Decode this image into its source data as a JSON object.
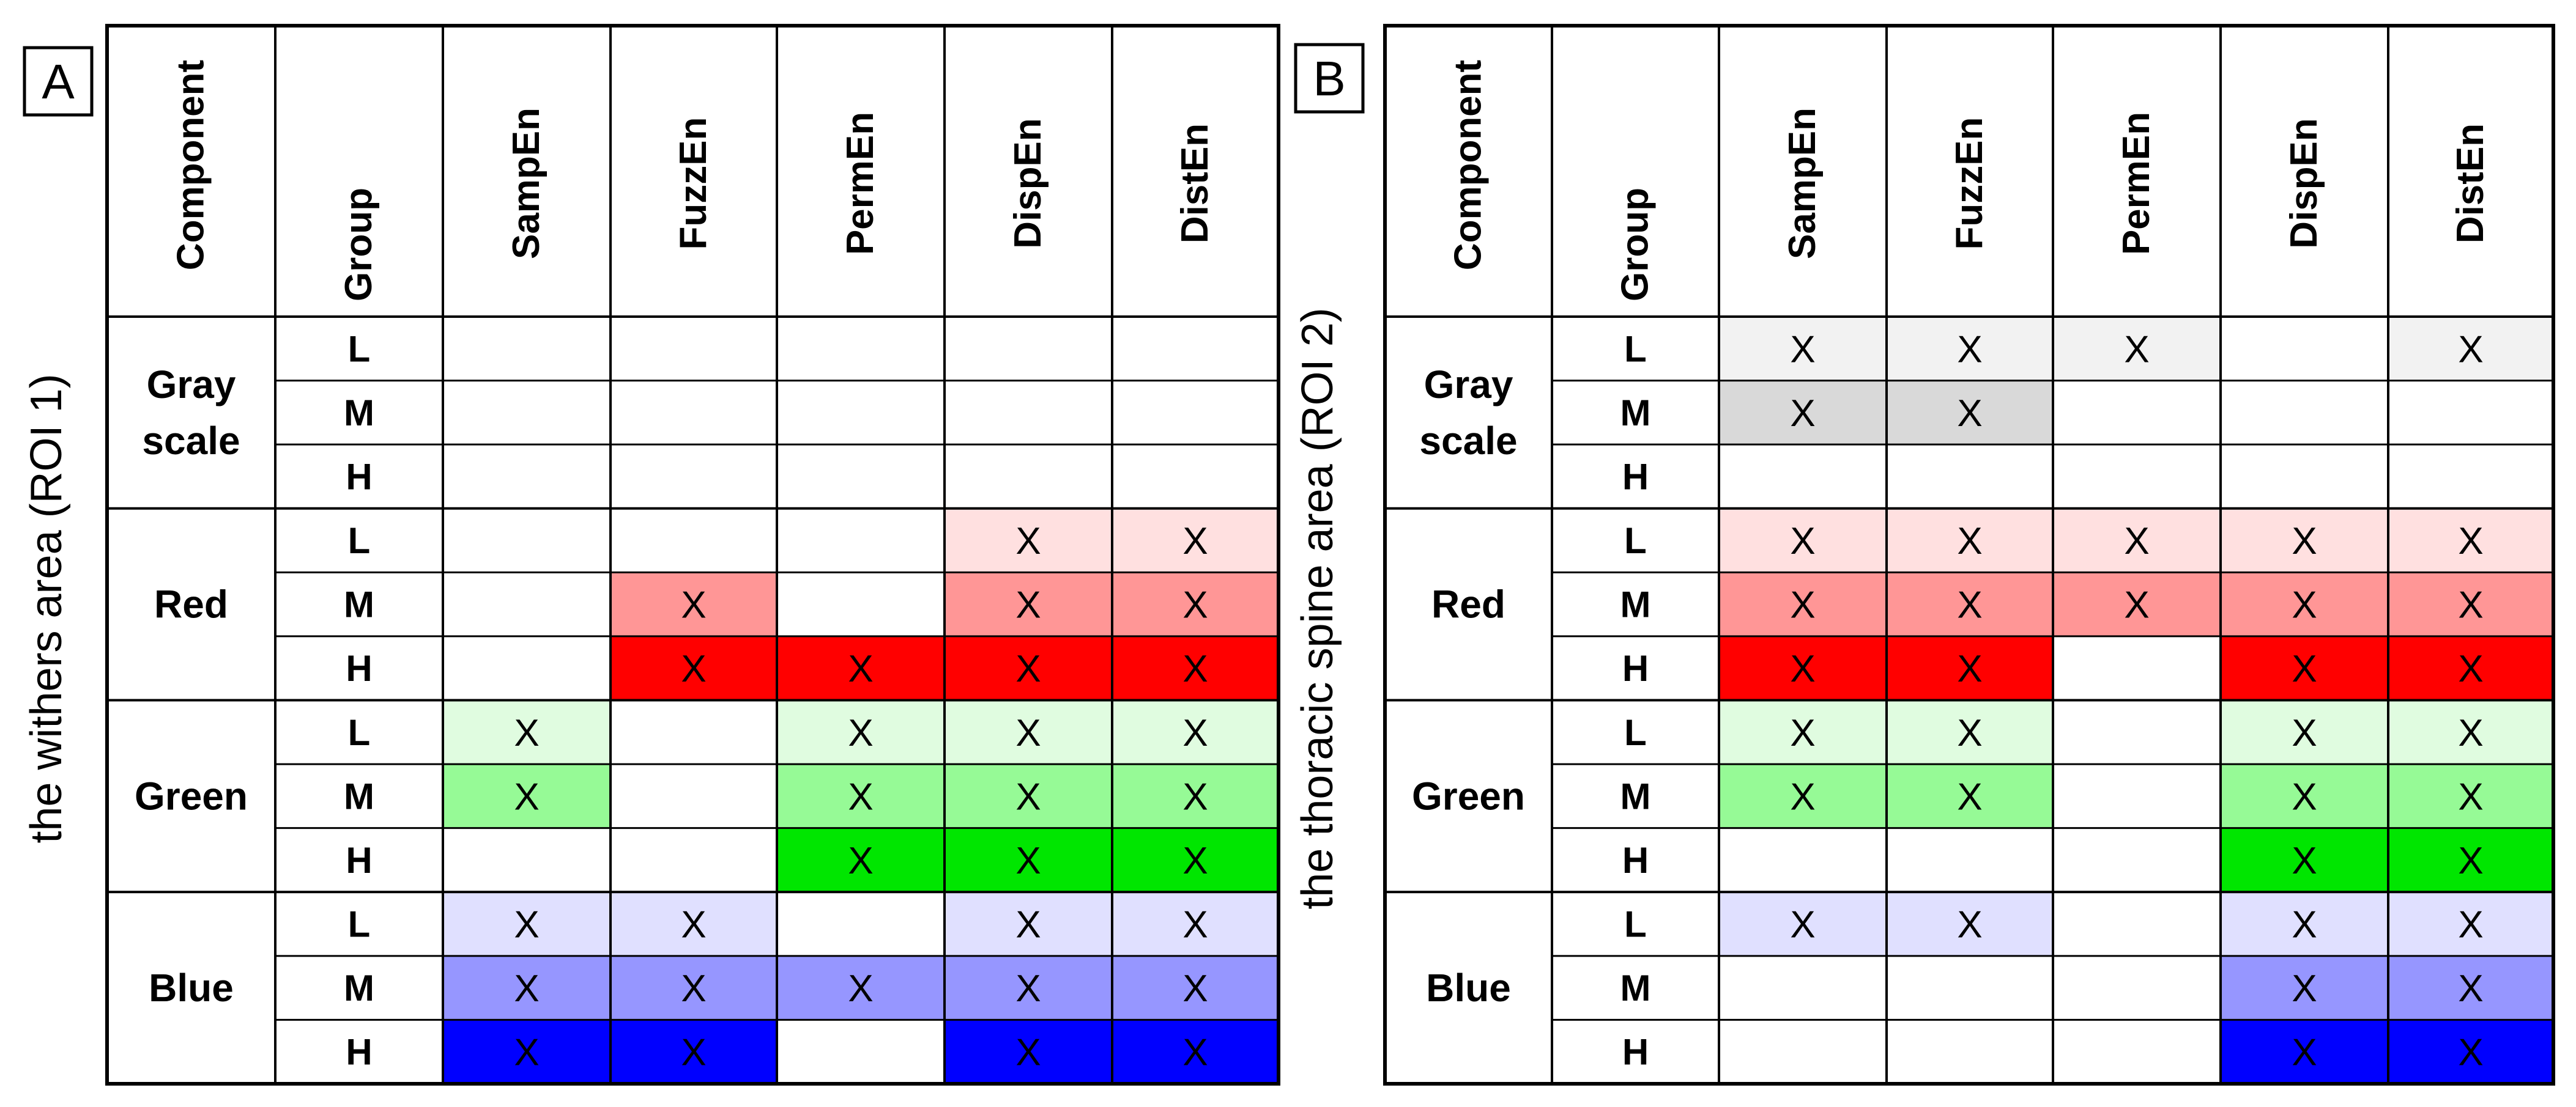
{
  "chart_data": [
    {
      "type": "table",
      "panel_label": "A",
      "side_title": "the withers area (ROI 1)",
      "header": [
        "Component",
        "Group",
        "SampEn",
        "FuzzEn",
        "PermEn",
        "DispEn",
        "DistEn"
      ],
      "components": [
        {
          "name_lines": [
            "Gray",
            "scale"
          ],
          "color_key": "gray",
          "groups": [
            "L",
            "M",
            "H"
          ]
        },
        {
          "name_lines": [
            "Red"
          ],
          "color_key": "red",
          "groups": [
            "L",
            "M",
            "H"
          ]
        },
        {
          "name_lines": [
            "Green"
          ],
          "color_key": "green",
          "groups": [
            "L",
            "M",
            "H"
          ]
        },
        {
          "name_lines": [
            "Blue"
          ],
          "color_key": "blue",
          "groups": [
            "L",
            "M",
            "H"
          ]
        }
      ],
      "matrix": [
        [
          0,
          0,
          0,
          0,
          0
        ],
        [
          0,
          0,
          0,
          0,
          0
        ],
        [
          0,
          0,
          0,
          0,
          0
        ],
        [
          0,
          0,
          0,
          1,
          1
        ],
        [
          0,
          1,
          0,
          1,
          1
        ],
        [
          0,
          1,
          1,
          1,
          1
        ],
        [
          1,
          0,
          1,
          1,
          1
        ],
        [
          1,
          0,
          1,
          1,
          1
        ],
        [
          0,
          0,
          1,
          1,
          1
        ],
        [
          1,
          1,
          0,
          1,
          1
        ],
        [
          1,
          1,
          1,
          1,
          1
        ],
        [
          1,
          1,
          0,
          1,
          1
        ]
      ]
    },
    {
      "type": "table",
      "panel_label": "B",
      "side_title": "the thoracic spine area (ROI 2)",
      "header": [
        "Component",
        "Group",
        "SampEn",
        "FuzzEn",
        "PermEn",
        "DispEn",
        "DistEn"
      ],
      "components": [
        {
          "name_lines": [
            "Gray",
            "scale"
          ],
          "color_key": "gray",
          "groups": [
            "L",
            "M",
            "H"
          ]
        },
        {
          "name_lines": [
            "Red"
          ],
          "color_key": "red",
          "groups": [
            "L",
            "M",
            "H"
          ]
        },
        {
          "name_lines": [
            "Green"
          ],
          "color_key": "green",
          "groups": [
            "L",
            "M",
            "H"
          ]
        },
        {
          "name_lines": [
            "Blue"
          ],
          "color_key": "blue",
          "groups": [
            "L",
            "M",
            "H"
          ]
        }
      ],
      "matrix": [
        [
          1,
          1,
          1,
          0,
          1
        ],
        [
          1,
          1,
          0,
          0,
          0
        ],
        [
          0,
          0,
          0,
          0,
          0
        ],
        [
          1,
          1,
          1,
          1,
          1
        ],
        [
          1,
          1,
          1,
          1,
          1
        ],
        [
          1,
          1,
          0,
          1,
          1
        ],
        [
          1,
          1,
          0,
          1,
          1
        ],
        [
          1,
          1,
          0,
          1,
          1
        ],
        [
          0,
          0,
          0,
          1,
          1
        ],
        [
          1,
          1,
          0,
          1,
          1
        ],
        [
          0,
          0,
          0,
          1,
          1
        ],
        [
          0,
          0,
          0,
          1,
          1
        ]
      ]
    }
  ],
  "mark_symbol": "X",
  "shade_colors": {
    "gray": [
      "#f2f2f2",
      "#d9d9d9",
      "#bfbfbf"
    ],
    "red": [
      "#ffe0e0",
      "#ff9696",
      "#ff0000"
    ],
    "green": [
      "#e0fce0",
      "#96fa96",
      "#00e600"
    ],
    "blue": [
      "#e0e0ff",
      "#9696ff",
      "#0000ff"
    ]
  }
}
